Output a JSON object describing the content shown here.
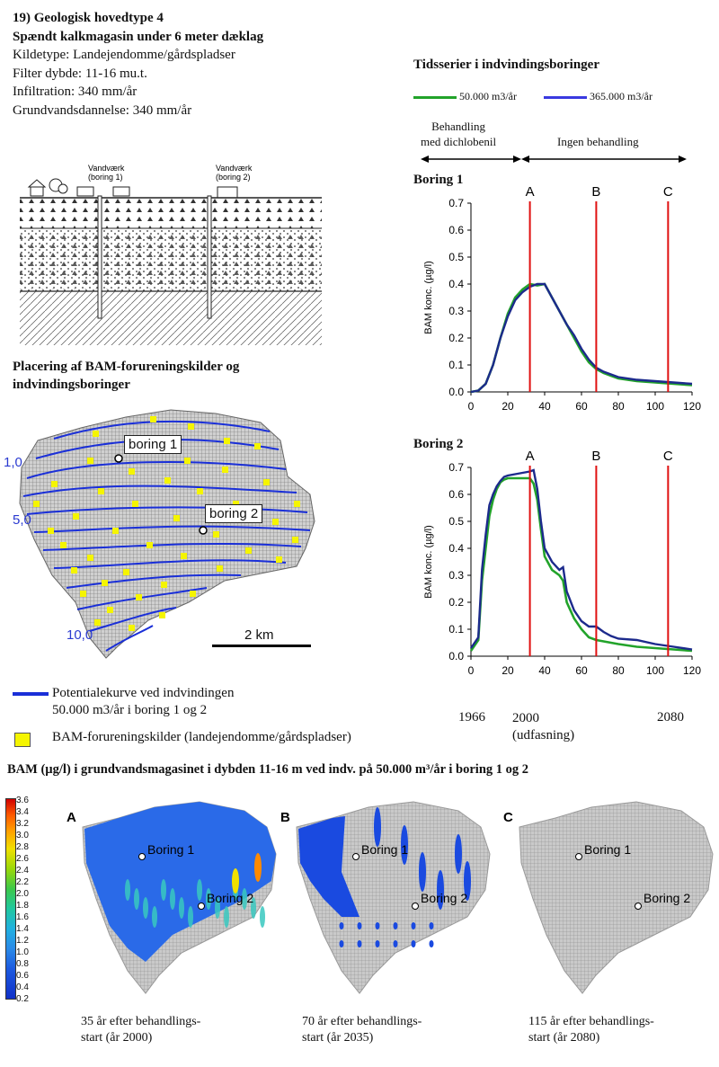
{
  "header": {
    "title1": "19) Geologisk hovedtype 4",
    "title2": "Spændt kalkmagasin under 6 meter dæklag",
    "line1": "Kildetype: Landejendomme/gårdspladser",
    "line2": "Filter dybde: 11-16 mu.t.",
    "line3": "Infiltration: 340 mm/år",
    "line4": "Grundvandsdannelse: 340 mm/år"
  },
  "cross_section": {
    "label_wv1_a": "Vandværk",
    "label_wv1_b": "(boring 1)",
    "label_wv2_a": "Vandværk",
    "label_wv2_b": "(boring 2)"
  },
  "map": {
    "title1": "Placering af BAM-forureningskilder og",
    "title2": "indvindingsboringer",
    "boring1": "boring 1",
    "boring2": "boring 2",
    "contour1": "1,0",
    "contour2": "5,0",
    "contour3": "10,0",
    "scale": "2 km"
  },
  "legend": {
    "potential": "Potentialekurve ved indvindingen",
    "potential2": "50.000 m3/år i boring 1 og 2",
    "sources": "BAM-forureningskilder (landejendomme/gårdspladser)",
    "potential_color": "#1a2fd8",
    "source_color": "#f5f500"
  },
  "timeseries": {
    "title": "Tidsserier i indvindingsboringer",
    "series1_label": "50.000 m3/år",
    "series2_label": "365.000 m3/år",
    "series1_color": "#22a32a",
    "series2_color": "#1c2a8c",
    "phase1a": "Behandling",
    "phase1b": "med dichlobenil",
    "phase2": "Ingen behandling",
    "boring1_title": "Boring 1",
    "boring2_title": "Boring 2",
    "ylabel": "BAM konc. (µg/l)",
    "year1966": "1966",
    "year2000": "2000",
    "year2000b": "(udfasning)",
    "year2080": "2080"
  },
  "chart_data": [
    {
      "type": "line",
      "title": "Boring 1",
      "xlabel": "",
      "ylabel": "BAM konc. (µg/l)",
      "xlim": [
        0,
        120
      ],
      "ylim": [
        0,
        0.7
      ],
      "x_ticks": [
        0,
        20,
        40,
        60,
        80,
        100,
        120
      ],
      "y_ticks": [
        0.0,
        0.1,
        0.2,
        0.3,
        0.4,
        0.5,
        0.6,
        0.7
      ],
      "markers": [
        {
          "label": "A",
          "x": 32
        },
        {
          "label": "B",
          "x": 68
        },
        {
          "label": "C",
          "x": 107
        }
      ],
      "series": [
        {
          "name": "50.000 m3/år",
          "x": [
            0,
            4,
            8,
            12,
            16,
            20,
            24,
            28,
            32,
            36,
            40,
            44,
            48,
            52,
            56,
            60,
            64,
            68,
            72,
            76,
            80,
            90,
            100,
            110,
            120
          ],
          "y": [
            0,
            0.005,
            0.03,
            0.1,
            0.2,
            0.29,
            0.35,
            0.38,
            0.4,
            0.395,
            0.4,
            0.35,
            0.3,
            0.25,
            0.2,
            0.15,
            0.11,
            0.085,
            0.07,
            0.06,
            0.05,
            0.04,
            0.035,
            0.03,
            0.025
          ]
        },
        {
          "name": "365.000 m3/år",
          "x": [
            0,
            4,
            8,
            12,
            16,
            20,
            24,
            28,
            32,
            36,
            40,
            44,
            48,
            52,
            56,
            60,
            64,
            68,
            72,
            76,
            80,
            90,
            100,
            110,
            120
          ],
          "y": [
            0,
            0.005,
            0.03,
            0.1,
            0.2,
            0.28,
            0.34,
            0.37,
            0.39,
            0.4,
            0.4,
            0.35,
            0.3,
            0.25,
            0.21,
            0.16,
            0.12,
            0.09,
            0.075,
            0.065,
            0.055,
            0.045,
            0.04,
            0.035,
            0.03
          ]
        }
      ]
    },
    {
      "type": "line",
      "title": "Boring 2",
      "xlabel": "",
      "ylabel": "BAM konc. (µg/l)",
      "xlim": [
        0,
        120
      ],
      "ylim": [
        0,
        0.7
      ],
      "x_ticks": [
        0,
        20,
        40,
        60,
        80,
        100,
        120
      ],
      "y_ticks": [
        0.0,
        0.1,
        0.2,
        0.3,
        0.4,
        0.5,
        0.6,
        0.7
      ],
      "markers": [
        {
          "label": "A",
          "x": 32
        },
        {
          "label": "B",
          "x": 68
        },
        {
          "label": "C",
          "x": 107
        }
      ],
      "series": [
        {
          "name": "50.000 m3/år",
          "x": [
            0,
            2,
            4,
            6,
            8,
            10,
            12,
            14,
            16,
            18,
            20,
            24,
            28,
            32,
            34,
            36,
            38,
            40,
            44,
            48,
            50,
            52,
            56,
            60,
            64,
            68,
            72,
            76,
            80,
            90,
            100,
            110,
            120
          ],
          "y": [
            0.02,
            0.04,
            0.06,
            0.28,
            0.4,
            0.52,
            0.58,
            0.62,
            0.645,
            0.655,
            0.66,
            0.66,
            0.66,
            0.66,
            0.64,
            0.58,
            0.47,
            0.37,
            0.32,
            0.3,
            0.28,
            0.2,
            0.14,
            0.1,
            0.07,
            0.06,
            0.055,
            0.05,
            0.045,
            0.035,
            0.03,
            0.025,
            0.02
          ]
        },
        {
          "name": "365.000 m3/år",
          "x": [
            0,
            2,
            4,
            6,
            8,
            10,
            12,
            14,
            16,
            18,
            20,
            24,
            28,
            32,
            34,
            36,
            38,
            40,
            44,
            48,
            50,
            52,
            56,
            60,
            64,
            68,
            72,
            76,
            80,
            90,
            100,
            110,
            120
          ],
          "y": [
            0.03,
            0.05,
            0.07,
            0.32,
            0.45,
            0.56,
            0.6,
            0.63,
            0.65,
            0.665,
            0.67,
            0.675,
            0.68,
            0.685,
            0.69,
            0.62,
            0.5,
            0.4,
            0.35,
            0.32,
            0.33,
            0.24,
            0.17,
            0.13,
            0.11,
            0.11,
            0.09,
            0.075,
            0.065,
            0.06,
            0.045,
            0.035,
            0.025
          ]
        }
      ]
    }
  ],
  "bottom": {
    "title": "BAM (µg/l) i grundvandsmagasinet i dybden 11-16 m ved indv. på 50.000 m³/år i boring 1 og 2",
    "colorbar_ticks": [
      "3.6",
      "3.4",
      "3.2",
      "3.0",
      "2.8",
      "2.6",
      "2.4",
      "2.2",
      "2.0",
      "1.8",
      "1.6",
      "1.4",
      "1.2",
      "1.0",
      "0.8",
      "0.6",
      "0.4",
      "0.2"
    ],
    "panels": [
      {
        "letter": "A",
        "boring1": "Boring 1",
        "boring2": "Boring 2",
        "cap1": "35 år efter behandlings-",
        "cap2": "start (år 2000)"
      },
      {
        "letter": "B",
        "boring1": "Boring 1",
        "boring2": "Boring 2",
        "cap1": "70 år efter behandlings-",
        "cap2": "start (år 2035)"
      },
      {
        "letter": "C",
        "boring1": "Boring 1",
        "boring2": "Boring 2",
        "cap1": "115 år efter behandlings-",
        "cap2": "start (år 2080)"
      }
    ]
  }
}
